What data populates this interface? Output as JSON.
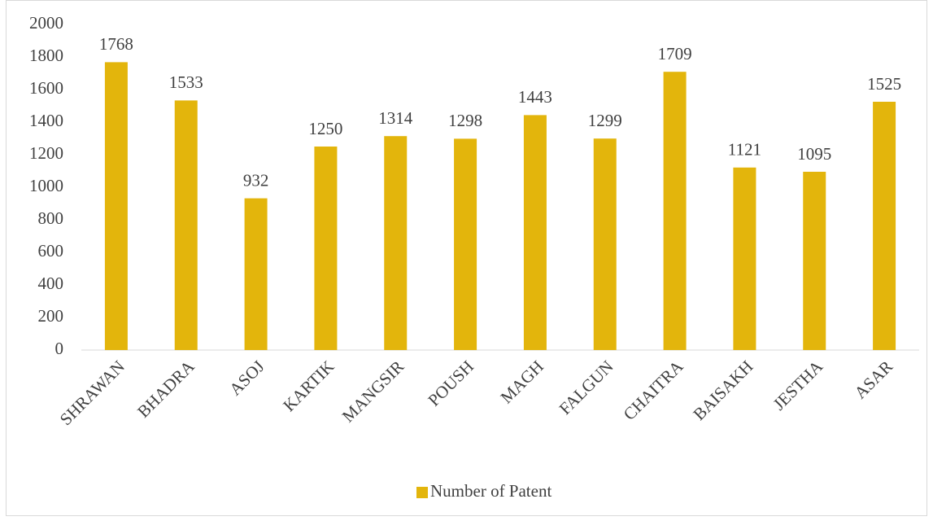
{
  "chart_data": {
    "type": "bar",
    "categories": [
      "SHRAWAN",
      "BHADRA",
      "ASOJ",
      "KARTIK",
      "MANGSIR",
      "POUSH",
      "MAGH",
      "FALGUN",
      "CHAITRA",
      "BAISAKH",
      "JESTHA",
      "ASAR"
    ],
    "series": [
      {
        "name": "Number of Patent",
        "color": "#e3b50c",
        "values": [
          1768,
          1533,
          932,
          1250,
          1314,
          1298,
          1443,
          1299,
          1709,
          1121,
          1095,
          1525
        ]
      }
    ],
    "ylim": [
      0,
      2000
    ],
    "yticks": [
      0,
      200,
      400,
      600,
      800,
      1000,
      1200,
      1400,
      1600,
      1800,
      2000
    ],
    "grid": false,
    "legend": "bottom"
  }
}
